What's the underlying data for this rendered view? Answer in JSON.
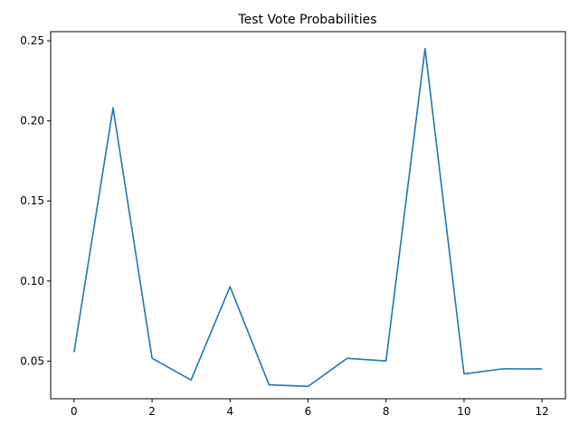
{
  "chart_data": {
    "type": "line",
    "title": "Test Vote Probabilities",
    "xlabel": "",
    "ylabel": "",
    "xlim": [
      -0.6,
      12.6
    ],
    "ylim": [
      0.0265,
      0.2557
    ],
    "x_ticks": [
      0,
      2,
      4,
      6,
      8,
      10,
      12
    ],
    "y_ticks": [
      0.05,
      0.1,
      0.15,
      0.2,
      0.25
    ],
    "x_tick_labels": [
      "0",
      "2",
      "4",
      "6",
      "8",
      "10",
      "12"
    ],
    "y_tick_labels": [
      "0.05",
      "0.10",
      "0.15",
      "0.20",
      "0.25"
    ],
    "grid": false,
    "series": [
      {
        "color": "#1f77b4",
        "x": [
          0,
          1,
          2,
          3,
          4,
          5,
          6,
          7,
          8,
          9,
          10,
          11,
          12
        ],
        "values": [
          0.0556,
          0.2081,
          0.0518,
          0.0382,
          0.0965,
          0.0352,
          0.0342,
          0.0517,
          0.0501,
          0.2451,
          0.042,
          0.0452,
          0.0451
        ]
      }
    ]
  }
}
